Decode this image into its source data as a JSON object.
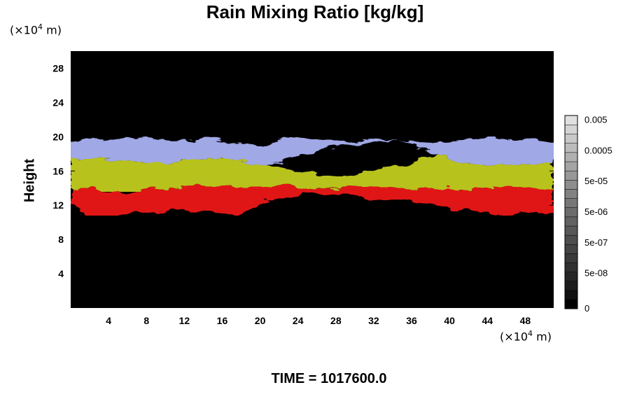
{
  "chart_data": {
    "type": "heatmap",
    "title": "Rain Mixing Ratio [kg/kg]",
    "ylabel": "Height",
    "x_unit_prefix": "(×10",
    "x_unit_exp": "4",
    "x_unit_suffix": " m)",
    "y_unit_prefix": "(×10",
    "y_unit_exp": "4",
    "y_unit_suffix": " m)",
    "xlim": [
      0,
      51
    ],
    "ylim": [
      0,
      30
    ],
    "x_ticks": [
      4,
      8,
      12,
      16,
      20,
      24,
      28,
      32,
      36,
      40,
      44,
      48
    ],
    "x_tick_labels": [
      "4",
      "8",
      "12",
      "16",
      "20",
      "24",
      "28",
      "32",
      "36",
      "40",
      "44",
      "48"
    ],
    "y_ticks": [
      4,
      8,
      12,
      16,
      20,
      24,
      28
    ],
    "y_tick_labels": [
      "4",
      "8",
      "12",
      "16",
      "20",
      "24",
      "28"
    ],
    "background_color": "#000000",
    "layers": [
      {
        "name": "upper",
        "color": "#a0a8e6",
        "bottom": [
          17.2,
          17.4,
          17.3,
          17.1,
          17.0,
          17.0,
          17.2,
          17.4,
          17.2,
          17.0,
          16.6,
          17.0,
          18.0,
          18.6,
          19.0,
          19.2,
          19.4,
          19.6,
          18.8,
          18.0,
          17.0,
          16.8,
          16.6,
          16.5,
          16.6,
          17.0
        ],
        "top": [
          19.4,
          19.6,
          19.8,
          20.0,
          19.8,
          19.6,
          19.6,
          19.8,
          19.6,
          19.2,
          19.0,
          19.8,
          20.0,
          19.6,
          19.4,
          19.6,
          19.8,
          19.6,
          19.2,
          19.4,
          19.6,
          19.8,
          19.8,
          19.6,
          19.6,
          19.4
        ]
      },
      {
        "name": "middle",
        "color": "#b8c21a",
        "bottom": [
          13.8,
          13.9,
          13.7,
          13.6,
          13.8,
          14.0,
          14.2,
          14.4,
          14.2,
          14.0,
          14.2,
          14.5,
          14.0,
          14.0,
          14.0,
          14.2,
          14.1,
          14.0,
          14.0,
          13.9,
          13.9,
          14.0,
          14.1,
          14.0,
          13.9,
          13.8
        ],
        "top": [
          17.2,
          17.4,
          17.3,
          17.1,
          17.0,
          17.0,
          17.2,
          17.4,
          17.2,
          17.0,
          16.6,
          16.4,
          15.8,
          15.4,
          15.6,
          15.8,
          16.2,
          16.6,
          17.2,
          18.0,
          17.0,
          16.8,
          16.6,
          16.5,
          16.6,
          17.0
        ]
      },
      {
        "name": "lower",
        "color": "#e01414",
        "bottom": [
          12.2,
          10.8,
          10.8,
          11.0,
          11.2,
          11.4,
          11.6,
          11.2,
          10.8,
          11.0,
          12.4,
          13.0,
          13.2,
          13.3,
          13.2,
          13.0,
          12.8,
          12.5,
          12.2,
          11.8,
          11.4,
          11.2,
          11.0,
          11.0,
          11.1,
          11.2
        ],
        "top": [
          13.8,
          13.9,
          13.7,
          13.6,
          13.8,
          14.0,
          14.2,
          14.4,
          14.2,
          14.0,
          14.2,
          14.5,
          14.0,
          14.0,
          14.0,
          14.2,
          14.1,
          14.0,
          14.0,
          13.9,
          13.9,
          14.0,
          14.1,
          14.0,
          13.9,
          13.8
        ]
      }
    ],
    "colorbar": {
      "levels": 21,
      "colors_dark_to_light": [
        "#000000",
        "#111111",
        "#1c1c1c",
        "#262626",
        "#303030",
        "#3a3a3a",
        "#444444",
        "#4e4e4e",
        "#585858",
        "#626262",
        "#6c6c6c",
        "#777777",
        "#828282",
        "#8d8d8d",
        "#989898",
        "#a4a4a4",
        "#b0b0b0",
        "#bcbcbc",
        "#c8c8c8",
        "#d4d4d4",
        "#e0e0e0"
      ],
      "labels": [
        "0",
        "5e-08",
        "5e-07",
        "5e-06",
        "5e-05",
        "0.0005",
        "0.005"
      ]
    }
  },
  "footer": {
    "time_label": "TIME = 1017600.0"
  }
}
